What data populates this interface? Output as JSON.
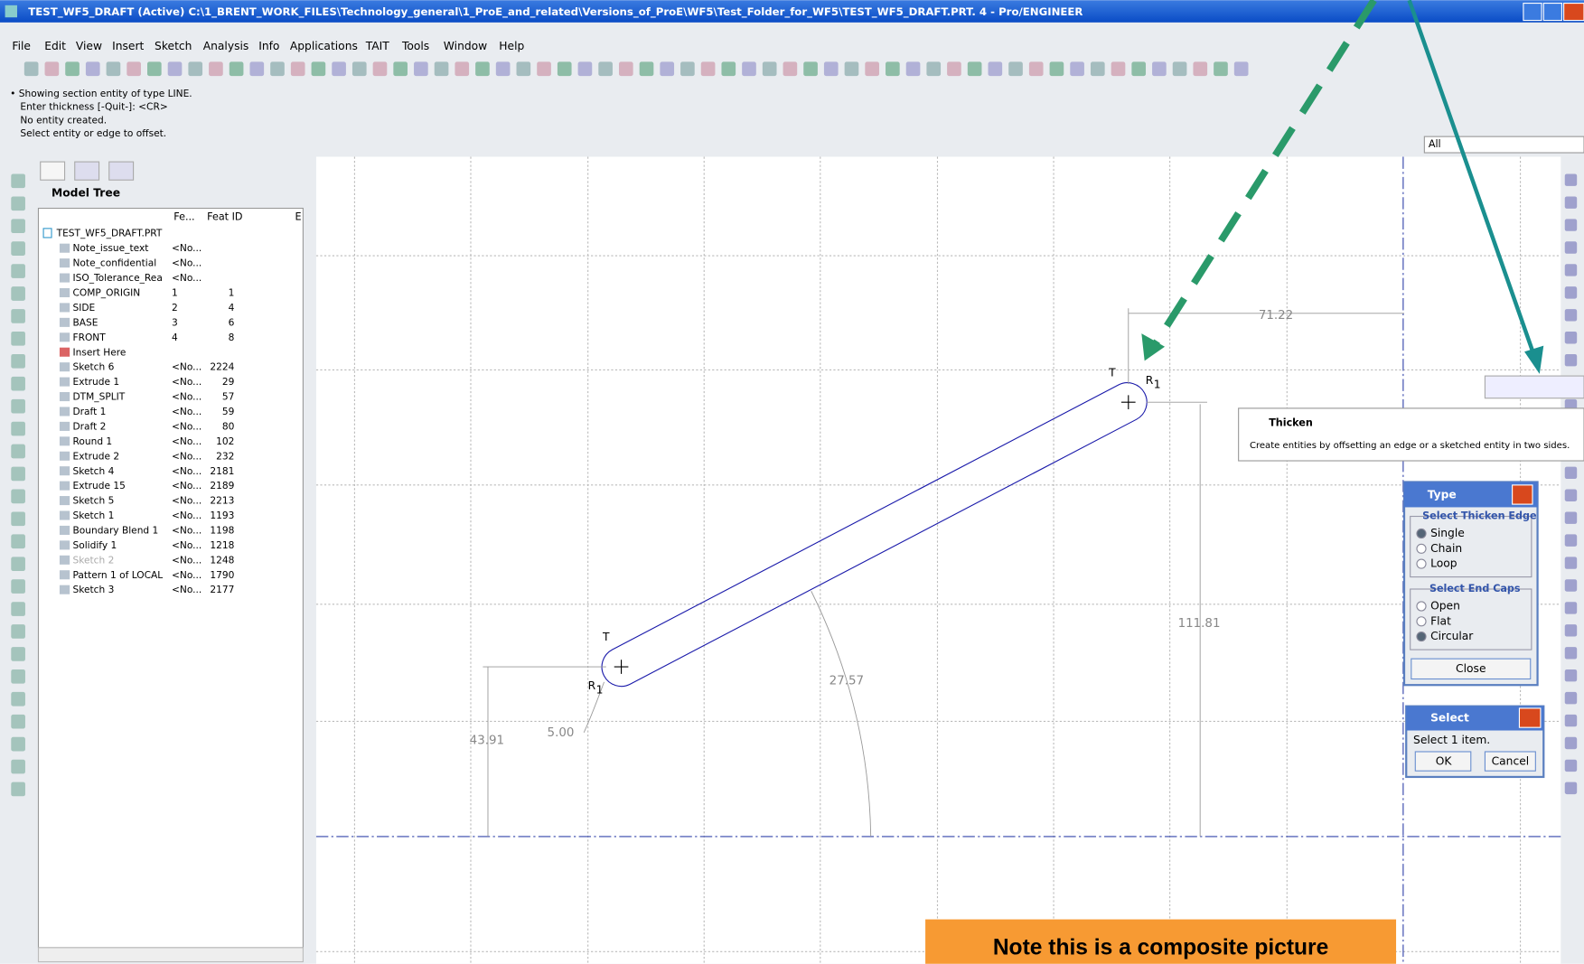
{
  "title_bar": {
    "title": "TEST_WF5_DRAFT (Active) C:\\1_BRENT_WORK_FILES\\Technology_general\\1_ProE_and_related\\Versions_of_ProE\\WF5\\Test_Folder_for_WF5\\TEST_WF5_DRAFT.PRT. 4 - Pro/ENGINEER"
  },
  "menu": [
    "File",
    "Edit",
    "View",
    "Insert",
    "Sketch",
    "Analysis",
    "Info",
    "Applications",
    "TAIT",
    "Tools",
    "Window",
    "Help"
  ],
  "messages": [
    "• Showing section entity of type LINE.",
    "Enter thickness [-Quit-]:  <CR>",
    "No entity created.",
    "Select entity or edge to offset."
  ],
  "filter": "All",
  "model_tree": {
    "title": "Model Tree",
    "columns": [
      "Fe...",
      "Feat ID",
      "E"
    ],
    "root": "TEST_WF5_DRAFT.PRT",
    "rows": [
      [
        "Note_issue_text",
        "<No...",
        ""
      ],
      [
        "Note_confidential",
        "<No...",
        ""
      ],
      [
        "ISO_Tolerance_Rea",
        "<No...",
        ""
      ],
      [
        "COMP_ORIGIN",
        "1",
        "1"
      ],
      [
        "SIDE",
        "2",
        "4"
      ],
      [
        "BASE",
        "3",
        "6"
      ],
      [
        "FRONT",
        "4",
        "8"
      ],
      [
        "Insert Here",
        "",
        ""
      ],
      [
        "Sketch 6",
        "<No...",
        "2224"
      ],
      [
        "Extrude 1",
        "<No...",
        "29"
      ],
      [
        "DTM_SPLIT",
        "<No...",
        "57"
      ],
      [
        "Draft 1",
        "<No...",
        "59"
      ],
      [
        "Draft 2",
        "<No...",
        "80"
      ],
      [
        "Round 1",
        "<No...",
        "102"
      ],
      [
        "Extrude 2",
        "<No...",
        "232"
      ],
      [
        "Sketch 4",
        "<No...",
        "2181"
      ],
      [
        "Extrude 15",
        "<No...",
        "2189"
      ],
      [
        "Sketch 5",
        "<No...",
        "2213"
      ],
      [
        "Sketch 1",
        "<No...",
        "1193"
      ],
      [
        "Boundary Blend 1",
        "<No...",
        "1198"
      ],
      [
        "Solidify 1",
        "<No...",
        "1218"
      ],
      [
        "Sketch 2",
        "<No...",
        "1248"
      ],
      [
        "Pattern 1 of LOCAL",
        "<No...",
        "1790"
      ],
      [
        "Sketch 3",
        "<No...",
        "2177"
      ]
    ]
  },
  "sketch": {
    "dimensions": [
      "71.22",
      "111.81",
      "27.57",
      "43.91",
      "5.00"
    ],
    "tangent": "T",
    "radius": {
      "letter": "R",
      "sub": "1"
    }
  },
  "tooltip": {
    "title": "Thicken",
    "text": "Create entities by offsetting an edge or a sketched entity in two sides."
  },
  "type_dialog": {
    "title": "Type",
    "edge_group": "Select Thicken Edge",
    "edge_options": [
      "Single",
      "Chain",
      "Loop"
    ],
    "edge_selected": 0,
    "caps_group": "Select End Caps",
    "caps_options": [
      "Open",
      "Flat",
      "Circular"
    ],
    "caps_selected": 2,
    "button": "Close"
  },
  "select_dialog": {
    "title": "Select",
    "text": "Select 1 item.",
    "buttons": [
      "OK",
      "Cancel"
    ]
  },
  "note": "Note this is a composite picture"
}
